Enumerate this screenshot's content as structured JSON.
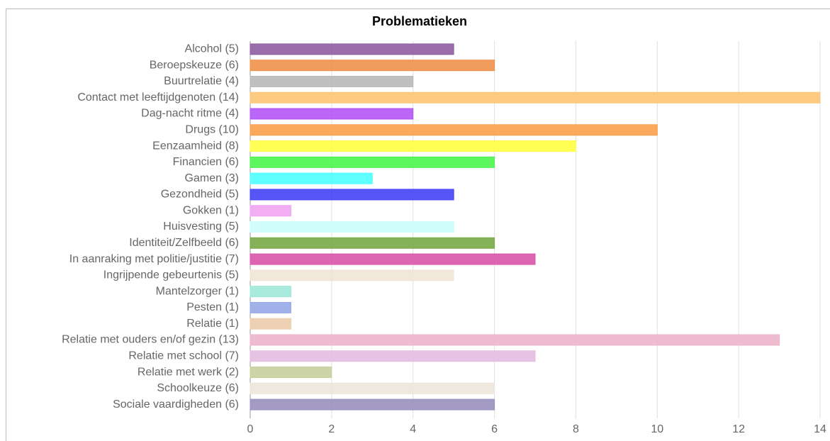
{
  "chart_data": {
    "type": "hbar",
    "title": "Problematieken",
    "categories": [
      "Alcohol (5)",
      "Beroepskeuze (6)",
      "Buurtrelatie (4)",
      "Contact met leeftijdgenoten (14)",
      "Dag-nacht ritme (4)",
      "Drugs (10)",
      "Eenzaamheid (8)",
      "Financien (6)",
      "Gamen (3)",
      "Gezondheid (5)",
      "Gokken (1)",
      "Huisvesting (5)",
      "Identiteit/Zelfbeeld (6)",
      "In aanraking met politie/justitie (7)",
      "Ingrijpende gebeurtenis (5)",
      "Mantelzorger (1)",
      "Pesten (1)",
      "Relatie (1)",
      "Relatie met ouders en/of gezin (13)",
      "Relatie met school (7)",
      "Relatie met werk (2)",
      "Schoolkeuze (6)",
      "Sociale vaardigheden (6)"
    ],
    "values": [
      5,
      6,
      4,
      14,
      4,
      10,
      8,
      6,
      3,
      5,
      1,
      5,
      6,
      7,
      5,
      1,
      1,
      1,
      13,
      7,
      2,
      6,
      6
    ],
    "colors": [
      "#8e5ea2",
      "#f0904a",
      "#b9b9b9",
      "#fcc573",
      "#b455f5",
      "#fba04a",
      "#ffff44",
      "#4cf54c",
      "#4dffff",
      "#4444f7",
      "#f2a4f2",
      "#ccfcfc",
      "#78aa46",
      "#d855a8",
      "#f0e6d6",
      "#9ee8d8",
      "#96a8e8",
      "#ecccac",
      "#ecb4ca",
      "#e4bce0",
      "#c8d09e",
      "#ece6dc",
      "#9a90be"
    ],
    "xlim": [
      0,
      14
    ],
    "xticks": [
      0,
      2,
      4,
      6,
      8,
      10,
      12,
      14
    ],
    "grid": true
  }
}
